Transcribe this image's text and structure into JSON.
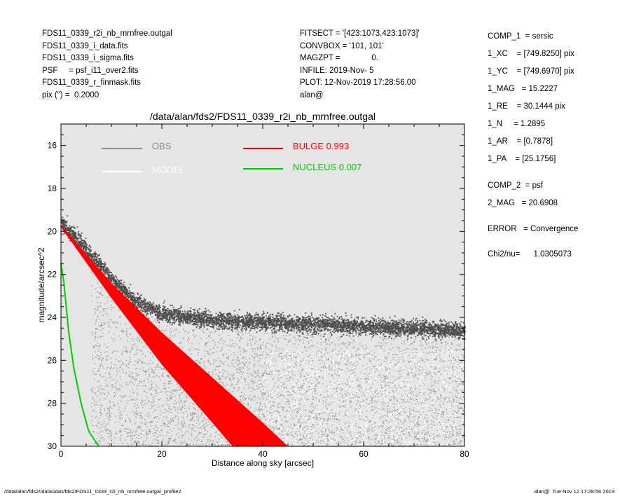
{
  "header_left": [
    "FDS11_0339_r2i_nb_mrnfree.outgal",
    "FDS11_0339_i_data.fits",
    "FDS11_0339_i_sigma.fits",
    "PSF     = psf_i11_over2.fits",
    "FDS11_0339_r_finmask.fits",
    "pix (\") =  0.2000"
  ],
  "header_mid": [
    "FITSECT = '[423:1073,423:1073]'",
    "CONVBOX = '101, 101'",
    "MAGZPT =              0.",
    "INFILE: 2019-Nov- 5",
    "PLOT: 12-Nov-2019 17:28:56.00",
    "alan@"
  ],
  "params": [
    "COMP_1  = sersic",
    "1_XC    = [749.8250] pix",
    "1_YC    = [749.6970] pix",
    "1_MAG   = 15.2227",
    "1_RE    = 30.1444 pix",
    "1_N     = 1.2895",
    "1_AR    = [0.7878]",
    "1_PA    = [25.1756]",
    "COMP_2  = psf",
    "2_MAG   = 20.6908",
    "ERROR   = Convergence",
    "Chi2/nu=      1.0305073"
  ],
  "footer_left": "/data/alan/fds2//data/alan/fds2/FDS11_0339_r2i_nb_mrnfree.outgal_profile2",
  "footer_right": "alan@  Tue Nov 12 17:28:56 2019",
  "colors": {
    "plot_bg": "#e5e5e5",
    "obs": "#8c8c8c",
    "obs_dense": "#4d4d4d",
    "model": "#ffffff",
    "bulge": "#ff0000",
    "nucleus": "#00cc00"
  },
  "chart_data": {
    "type": "scatter",
    "title": "/data/alan/fds2/FDS11_0339_r2i_nb_mrnfree.outgal",
    "xlabel": "Distance along sky [arcsec]",
    "ylabel": "magnitude/arcsec^2",
    "xlim": [
      0,
      80
    ],
    "ylim": [
      30,
      15
    ],
    "x_ticks": [
      "0",
      "20",
      "40",
      "60",
      "80"
    ],
    "y_ticks": [
      "16",
      "18",
      "20",
      "22",
      "24",
      "26",
      "28",
      "30"
    ],
    "legend": {
      "obs": "OBS",
      "model": "MODEL",
      "bulge": "BULGE  0.993",
      "nucleus": "NUCLEUS  0.007"
    },
    "series": [
      {
        "name": "OBS",
        "description_points": [
          [
            0,
            19.6
          ],
          [
            5,
            20.8
          ],
          [
            10,
            22.2
          ],
          [
            15,
            23.3
          ],
          [
            20,
            23.8
          ],
          [
            30,
            24.1
          ],
          [
            40,
            24.2
          ],
          [
            60,
            24.4
          ],
          [
            80,
            24.6
          ]
        ]
      },
      {
        "name": "BULGE  0.993",
        "upper_edge": [
          [
            0,
            19.7
          ],
          [
            10,
            22.4
          ],
          [
            20,
            24.7
          ],
          [
            30,
            26.8
          ],
          [
            40,
            28.9
          ],
          [
            45,
            30.0
          ]
        ],
        "lower_edge": [
          [
            0,
            19.8
          ],
          [
            10,
            23.1
          ],
          [
            20,
            26.2
          ],
          [
            30,
            28.9
          ],
          [
            34,
            30.0
          ]
        ]
      },
      {
        "name": "NUCLEUS  0.007",
        "points": [
          [
            0,
            21.5
          ],
          [
            0.6,
            22.4
          ],
          [
            1.5,
            24.6
          ],
          [
            2.5,
            26.3
          ],
          [
            4,
            28.0
          ],
          [
            5.5,
            29.3
          ],
          [
            7.5,
            30.0
          ]
        ]
      }
    ]
  }
}
